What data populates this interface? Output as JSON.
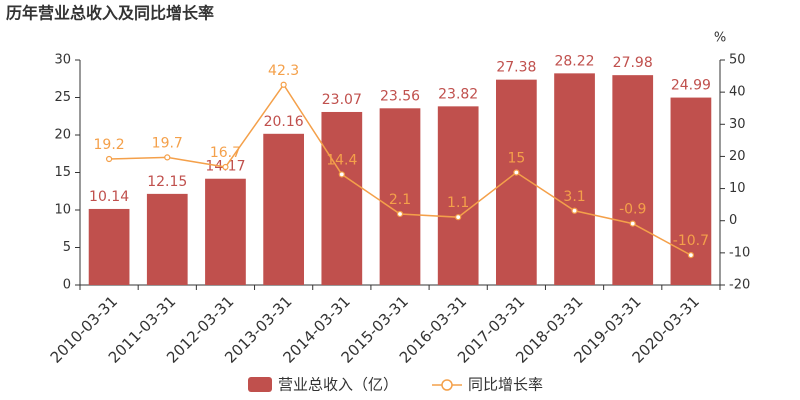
{
  "chart_data": {
    "type": "bar",
    "title": "历年营业总收入及同比增长率",
    "y2_label": "%",
    "categories": [
      "2010-03-31",
      "2011-03-31",
      "2012-03-31",
      "2013-03-31",
      "2014-03-31",
      "2015-03-31",
      "2016-03-31",
      "2017-03-31",
      "2018-03-31",
      "2019-03-31",
      "2020-03-31"
    ],
    "series": [
      {
        "name": "营业总收入（亿）",
        "type": "bar",
        "color": "#c0504d",
        "label_color": "#c0504d",
        "values": [
          10.14,
          12.15,
          14.17,
          20.16,
          23.07,
          23.56,
          23.82,
          27.38,
          28.22,
          27.98,
          24.99
        ]
      },
      {
        "name": "同比增长率",
        "type": "line",
        "axis": "y2",
        "color": "#f4a04a",
        "values": [
          19.2,
          19.7,
          16.7,
          42.3,
          14.4,
          2.1,
          1.1,
          15,
          3.1,
          -0.9,
          -10.7
        ]
      }
    ],
    "ylim": [
      0,
      30
    ],
    "yticks": [
      0,
      5,
      10,
      15,
      20,
      25,
      30
    ],
    "y2lim": [
      -20,
      50
    ],
    "y2ticks": [
      -20,
      -10,
      0,
      10,
      20,
      30,
      40,
      50
    ],
    "grid": false
  }
}
